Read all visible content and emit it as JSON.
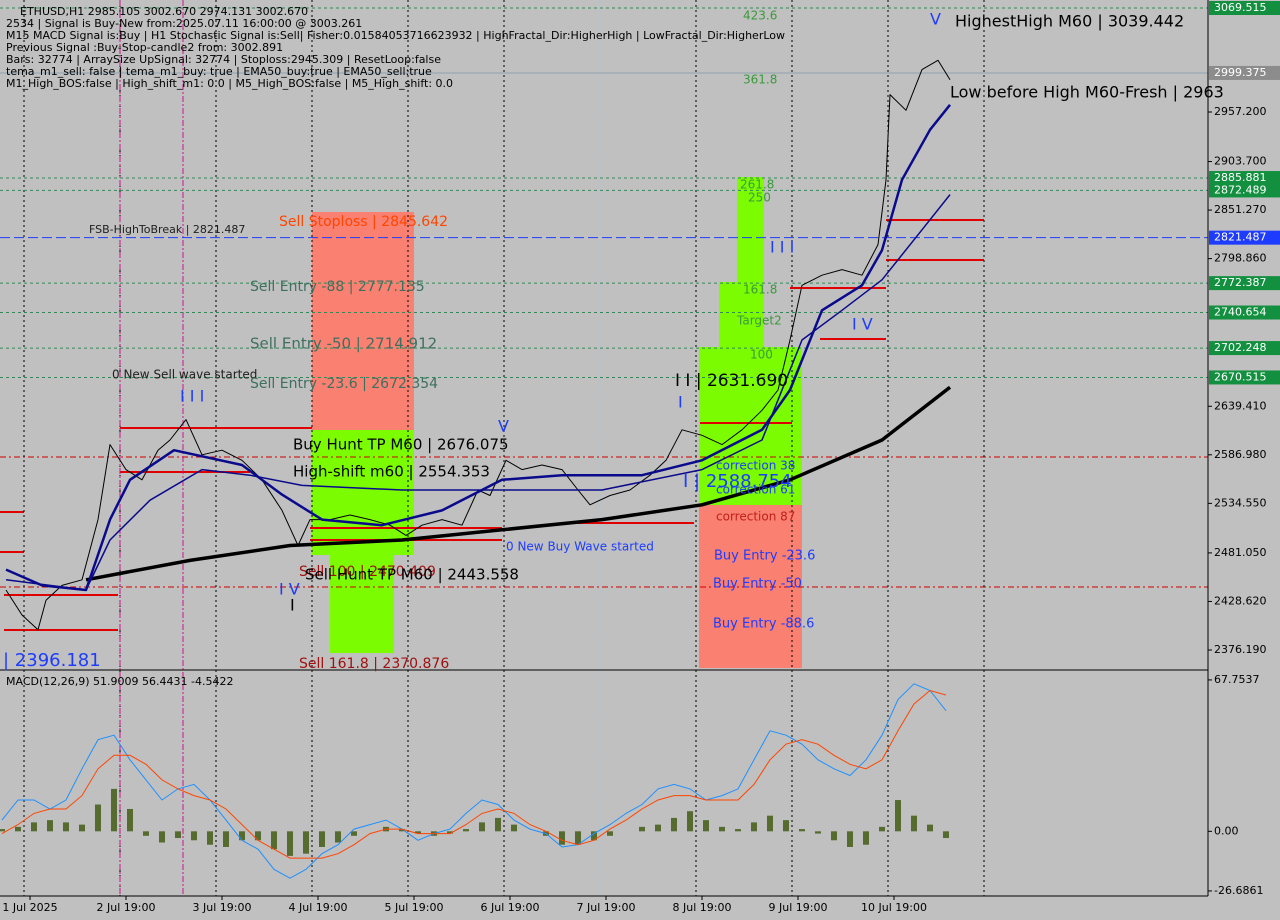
{
  "info_lines": [
    "ETHUSD,H1  2985.105 3002.670 2974.131 3002.670",
    "2534 | Signal is Buy-New from:2025.07.11 16:00:00 @ 3003.261",
    "M15 MACD Signal is:Buy | H1 Stochastic Signal is:Sell| Fisher:0.01584053716623932 | HighFractal_Dir:HigherHigh | LowFractal_Dir:HigherLow",
    "Previous Signal :Buy-Stop-candle2 from: 3002.891",
    "Bars: 32774 | ArraySize UpSignal: 32774 | Stoploss:2945.309 | ResetLoop:false",
    "tema_m1_sell: false | tema_m1_buy: true | EMA50_buy:true | EMA50_sell:true",
    "M1_High_BOS:false | High_shift_m1: 0.0 | M5_High_BOS:false | M5_High_shift: 0.0"
  ],
  "chart_data": [
    {
      "type": "line",
      "xlim": [
        -0.5,
        301.5
      ],
      "ylim": [
        2356.75,
        3078.15
      ],
      "xticks": [
        {
          "value": 7,
          "label": "1 Jul 2025"
        },
        {
          "value": 31,
          "label": "2 Jul 19:00"
        },
        {
          "value": 55,
          "label": "3 Jul 19:00"
        },
        {
          "value": 79,
          "label": "4 Jul 19:00"
        },
        {
          "value": 103,
          "label": "5 Jul 19:00"
        },
        {
          "value": 127,
          "label": "6 Jul 19:00"
        },
        {
          "value": 151,
          "label": "7 Jul 19:00"
        },
        {
          "value": 175,
          "label": "8 Jul 19:00"
        },
        {
          "value": 199,
          "label": "9 Jul 19:00"
        },
        {
          "value": 223,
          "label": "10 Jul 19:00"
        }
      ],
      "yticks": [
        {
          "value": 2957.2,
          "label": "2957.200"
        },
        {
          "value": 2903.7,
          "label": "2903.700"
        },
        {
          "value": 2851.27,
          "label": "2851.270"
        },
        {
          "value": 2798.86,
          "label": "2798.860"
        },
        {
          "value": 2639.41,
          "label": "2639.410"
        },
        {
          "value": 2586.98,
          "label": "2586.980"
        },
        {
          "value": 2534.55,
          "label": "2534.550"
        },
        {
          "value": 2481.05,
          "label": "2481.050"
        },
        {
          "value": 2428.62,
          "label": "2428.620"
        },
        {
          "value": 2376.19,
          "label": "2376.190"
        }
      ],
      "levels": [
        {
          "value": 3069.515,
          "label": "3069.515",
          "color": "#129040"
        },
        {
          "value": 2999.375,
          "label": "2999.375",
          "color": "#8c8c8c"
        },
        {
          "value": 2885.881,
          "label": "2885.881",
          "color": "#129040"
        },
        {
          "value": 2872.489,
          "label": "2872.489",
          "color": "#129040"
        },
        {
          "value": 2821.487,
          "label": "2821.487",
          "color": "#1e3cff"
        },
        {
          "value": 2772.387,
          "label": "2772.387",
          "color": "#129040"
        },
        {
          "value": 2740.654,
          "label": "2740.654",
          "color": "#129040"
        },
        {
          "value": 2702.248,
          "label": "2702.248",
          "color": "#129040"
        },
        {
          "value": 2670.515,
          "label": "2670.515",
          "color": "#129040"
        }
      ],
      "series": [
        {
          "color": "#000000",
          "width": 1,
          "x": [
            1,
            5,
            9,
            11,
            15,
            20,
            24,
            27,
            31,
            35,
            39,
            42,
            46,
            50,
            55,
            60,
            65,
            70,
            74,
            77,
            82,
            87,
            92,
            97,
            101,
            105,
            110,
            115,
            119,
            122,
            126,
            130,
            135,
            140,
            144,
            147,
            152,
            157,
            162,
            166,
            170,
            175,
            180,
            185,
            190,
            194,
            197,
            200,
            205,
            210,
            215,
            219,
            221,
            222,
            226,
            230,
            234,
            237
          ],
          "values": [
            2441,
            2414,
            2398,
            2430,
            2446,
            2452,
            2517,
            2598,
            2571,
            2560,
            2592,
            2603,
            2625,
            2587,
            2592,
            2581,
            2560,
            2527,
            2489,
            2517,
            2517,
            2522,
            2517,
            2511,
            2500,
            2511,
            2517,
            2511,
            2549,
            2543,
            2581,
            2571,
            2576,
            2571,
            2549,
            2533,
            2543,
            2549,
            2565,
            2581,
            2614,
            2608,
            2598,
            2614,
            2635,
            2657,
            2711,
            2770,
            2781,
            2787,
            2781,
            2814,
            2884,
            2976,
            2959,
            3003,
            3013,
            2992
          ]
        },
        {
          "color": "#000000",
          "width": 3.5,
          "x": [
            21,
            47,
            72,
            100,
            125,
            150,
            175,
            197,
            220,
            237
          ],
          "values": [
            2452,
            2473,
            2489,
            2495,
            2506,
            2517,
            2533,
            2560,
            2603,
            2660
          ]
        },
        {
          "color": "#0a0a8c",
          "width": 2.5,
          "x": [
            1,
            10,
            21,
            27,
            32,
            43,
            60,
            70,
            80,
            95,
            110,
            125,
            140,
            160,
            175,
            190,
            197,
            205,
            215,
            220,
            225,
            232,
            237
          ],
          "values": [
            2463,
            2446,
            2441,
            2517,
            2560,
            2592,
            2576,
            2544,
            2517,
            2511,
            2527,
            2560,
            2565,
            2565,
            2581,
            2614,
            2657,
            2743,
            2770,
            2808,
            2884,
            2938,
            2965
          ]
        },
        {
          "color": "#0a0a8c",
          "width": 1.5,
          "x": [
            1,
            21,
            27,
            37,
            50,
            62,
            75,
            100,
            125,
            150,
            175,
            190,
            200,
            210,
            220,
            230,
            237
          ],
          "values": [
            2452,
            2441,
            2495,
            2538,
            2571,
            2565,
            2554,
            2549,
            2549,
            2549,
            2571,
            2603,
            2711,
            2743,
            2776,
            2830,
            2868
          ]
        }
      ],
      "annotations": [
        "423.6",
        "V",
        "HighestHigh    M60 | 3039.442",
        "361.8",
        "Low before High    M60-Fresh | 2963",
        "261.8",
        "250",
        "Sell Stoploss | 2845.642",
        "FSB-HighToBreak | 2821.487",
        "I I I",
        "Sell Entry -88 | 2777.135",
        "161.8",
        "Target2",
        "I V",
        "Sell Entry -50 | 2714.912",
        "100",
        "0 New Sell wave started",
        "Sell Entry -23.6 | 2672.354",
        "I I | 2631.690",
        "I I I",
        "I",
        "V",
        "Buy Hunt TP M60 | 2676.075",
        "correction 38",
        "High-shift m60 | 2554.353",
        "I | 2588.754",
        "correction 61",
        "correction 87",
        "0 New Buy Wave started",
        "Buy Entry -23.6",
        "Sell 100 | 2470.409",
        "Sell Hunt TP M60 | 2443.558",
        "I V",
        "I",
        "Buy Entry -50",
        "Buy Entry -88.6",
        "Sell 161.8 | 2370.876",
        "| 2396.181"
      ]
    },
    {
      "type": "macd",
      "title": "MACD(12,26,9) 51.9009 56.4431 -4.5422",
      "xlim": [
        -0.5,
        301.5
      ],
      "ylim": [
        -28.5,
        71.3
      ],
      "yticks": [
        {
          "value": 67.7537,
          "label": "67.7537"
        },
        {
          "value": 0,
          "label": "0.00"
        },
        {
          "value": -26.6861,
          "label": "-26.6861"
        }
      ],
      "x": [
        0,
        4,
        8,
        12,
        16,
        20,
        24,
        28,
        32,
        36,
        40,
        44,
        48,
        52,
        56,
        60,
        64,
        68,
        72,
        76,
        80,
        84,
        88,
        92,
        96,
        100,
        104,
        108,
        112,
        116,
        120,
        124,
        128,
        132,
        136,
        140,
        144,
        148,
        152,
        156,
        160,
        164,
        168,
        172,
        176,
        180,
        184,
        188,
        192,
        196,
        200,
        204,
        208,
        212,
        216,
        220,
        224,
        228,
        232,
        236
      ],
      "histogram": {
        "color": "#556b2f",
        "values": [
          1,
          2,
          4,
          5,
          4,
          3,
          12,
          19,
          10,
          -2,
          -5,
          -3,
          -4,
          -6,
          -7,
          -4,
          -4,
          -8,
          -11,
          -10,
          -7,
          -5,
          -2,
          0,
          2,
          1,
          -1,
          -2,
          -1,
          1,
          4,
          6,
          3,
          0,
          -2,
          -6,
          -6,
          -4,
          -2,
          0,
          2,
          3,
          6,
          9,
          5,
          2,
          1,
          4,
          7,
          5,
          1,
          -1,
          -4,
          -7,
          -6,
          2,
          14,
          7,
          3,
          -3
        ]
      },
      "series": [
        {
          "color": "#1e90ff",
          "values": [
            5,
            14,
            14,
            10,
            14,
            28,
            41,
            43,
            32,
            23,
            14,
            19,
            21,
            14,
            5,
            -4,
            -8,
            -17,
            -21,
            -17,
            -10,
            -6,
            1,
            3,
            5,
            1,
            -4,
            -1,
            1,
            8,
            14,
            12,
            5,
            1,
            -1,
            -7,
            -6,
            -1,
            3,
            8,
            12,
            19,
            21,
            19,
            14,
            16,
            19,
            32,
            45,
            43,
            39,
            32,
            28,
            25,
            32,
            43,
            59,
            66,
            63,
            54
          ]
        },
        {
          "color": "#ff4500",
          "values": [
            -1,
            3,
            8,
            10,
            10,
            16,
            28,
            34,
            34,
            30,
            23,
            19,
            16,
            14,
            10,
            3,
            -4,
            -8,
            -12,
            -12,
            -12,
            -10,
            -6,
            -1,
            1,
            1,
            -1,
            -1,
            -1,
            3,
            8,
            10,
            8,
            3,
            0,
            -4,
            -6,
            -4,
            1,
            5,
            10,
            14,
            16,
            16,
            14,
            14,
            14,
            21,
            32,
            39,
            41,
            39,
            34,
            30,
            28,
            32,
            45,
            57,
            63,
            61
          ]
        }
      ]
    }
  ]
}
